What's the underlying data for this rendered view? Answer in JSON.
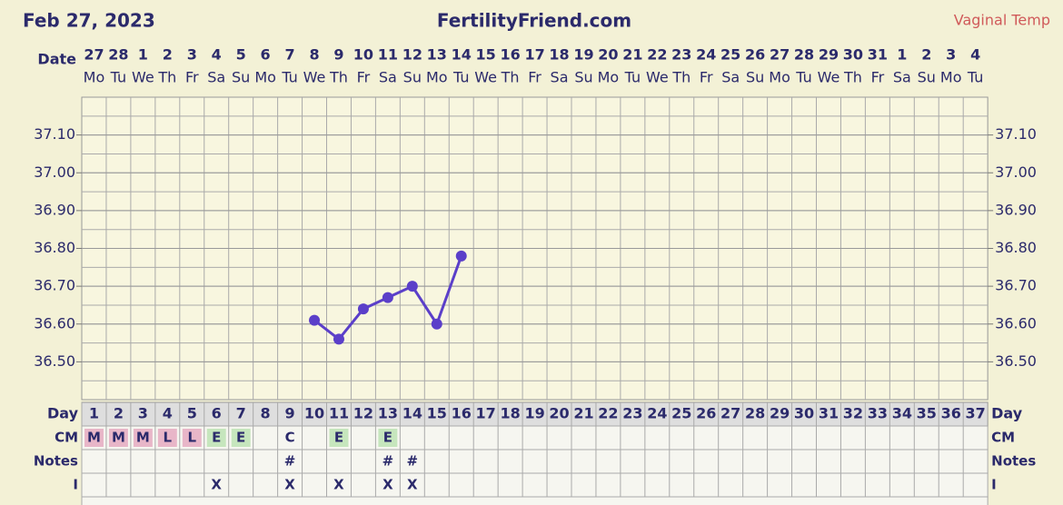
{
  "chart_data": {
    "type": "line",
    "date": "Feb 27, 2023",
    "title": "FertilityFriend.com",
    "x_label": "Date",
    "dates": [
      27,
      28,
      1,
      2,
      3,
      4,
      5,
      6,
      7,
      8,
      9,
      10,
      11,
      12,
      13,
      14,
      15,
      16,
      17,
      18,
      19,
      20,
      21,
      22,
      23,
      24,
      25,
      26,
      27,
      28,
      29,
      30,
      31,
      1,
      2,
      3,
      4
    ],
    "weekdays": [
      "Mo",
      "Tu",
      "We",
      "Th",
      "Fr",
      "Sa",
      "Su",
      "Mo",
      "Tu",
      "We",
      "Th",
      "Fr",
      "Sa",
      "Su",
      "Mo",
      "Tu",
      "We",
      "Th",
      "Fr",
      "Sa",
      "Su",
      "Mo",
      "Tu",
      "We",
      "Th",
      "Fr",
      "Sa",
      "Su",
      "Mo",
      "Tu",
      "We",
      "Th",
      "Fr",
      "Sa",
      "Su",
      "Mo",
      "Tu"
    ],
    "day_label": "Day",
    "categories": [
      1,
      2,
      3,
      4,
      5,
      6,
      7,
      8,
      9,
      10,
      11,
      12,
      13,
      14,
      15,
      16,
      17,
      18,
      19,
      20,
      21,
      22,
      23,
      24,
      25,
      26,
      27,
      28,
      29,
      30,
      31,
      32,
      33,
      34,
      35,
      36,
      37
    ],
    "series": [
      {
        "name": "Vaginal Temp",
        "color": "#5b3fc9",
        "values": [
          null,
          null,
          null,
          null,
          null,
          null,
          null,
          null,
          null,
          36.61,
          36.56,
          36.64,
          36.67,
          36.7,
          36.6,
          36.78,
          null,
          null,
          null,
          null,
          null,
          null,
          null,
          null,
          null,
          null,
          null,
          null,
          null,
          null,
          null,
          null,
          null,
          null,
          null,
          null,
          null
        ]
      }
    ],
    "ylim": [
      36.4,
      37.2
    ],
    "yticks": [
      {
        "value": 36.5,
        "label": "36.50"
      },
      {
        "value": 36.6,
        "label": "36.60"
      },
      {
        "value": 36.7,
        "label": "36.70"
      },
      {
        "value": 36.8,
        "label": "36.80"
      },
      {
        "value": 36.9,
        "label": "36.90"
      },
      {
        "value": 37.0,
        "label": "37.00"
      },
      {
        "value": 37.1,
        "label": "37.10"
      }
    ],
    "grid": true,
    "rows": [
      {
        "label": "CM",
        "cells": [
          "M",
          "M",
          "M",
          "L",
          "L",
          "E",
          "E",
          null,
          "C",
          null,
          "E",
          null,
          "E",
          null,
          null,
          null,
          null,
          null,
          null,
          null,
          null,
          null,
          null,
          null,
          null,
          null,
          null,
          null,
          null,
          null,
          null,
          null,
          null,
          null,
          null,
          null,
          null
        ]
      },
      {
        "label": "Notes",
        "cells": [
          null,
          null,
          null,
          null,
          null,
          null,
          null,
          null,
          "#",
          null,
          null,
          null,
          "#",
          "#",
          null,
          null,
          null,
          null,
          null,
          null,
          null,
          null,
          null,
          null,
          null,
          null,
          null,
          null,
          null,
          null,
          null,
          null,
          null,
          null,
          null,
          null,
          null
        ]
      },
      {
        "label": "I",
        "cells": [
          null,
          null,
          null,
          null,
          null,
          "X",
          null,
          null,
          "X",
          null,
          "X",
          null,
          "X",
          "X",
          null,
          null,
          null,
          null,
          null,
          null,
          null,
          null,
          null,
          null,
          null,
          null,
          null,
          null,
          null,
          null,
          null,
          null,
          null,
          null,
          null,
          null,
          null
        ]
      }
    ]
  }
}
